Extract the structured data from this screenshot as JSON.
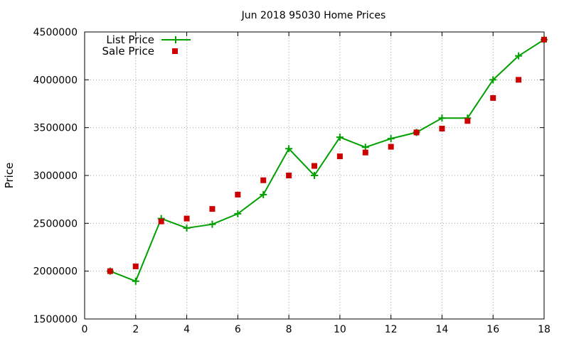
{
  "chart_data": {
    "type": "line",
    "title": "Jun 2018 95030 Home Prices",
    "xlabel": "",
    "ylabel": "Price",
    "xlim": [
      0,
      18
    ],
    "ylim": [
      1500000,
      4500000
    ],
    "xticks": [
      0,
      2,
      4,
      6,
      8,
      10,
      12,
      14,
      16,
      18
    ],
    "yticks": [
      1500000,
      2000000,
      2500000,
      3000000,
      3500000,
      4000000,
      4500000
    ],
    "xtick_labels": [
      "0",
      "2",
      "4",
      "6",
      "8",
      "10",
      "12",
      "14",
      "16",
      "18"
    ],
    "ytick_labels": [
      "1500000",
      "2000000",
      "2500000",
      "3000000",
      "3500000",
      "4000000",
      "4500000"
    ],
    "grid": true,
    "legend_position": "top-left",
    "series": [
      {
        "name": "List Price",
        "style": "line-with-plus-markers",
        "color": "#00a000",
        "x": [
          1,
          2,
          3,
          4,
          5,
          6,
          7,
          8,
          9,
          10,
          11,
          12,
          13,
          14,
          15,
          16,
          17,
          18
        ],
        "y": [
          2000000,
          1895000,
          2550000,
          2450000,
          2490000,
          2600000,
          2800000,
          3280000,
          3000000,
          3400000,
          3295000,
          3385000,
          3450000,
          3600000,
          3600000,
          4000000,
          4250000,
          4420000
        ]
      },
      {
        "name": "Sale Price",
        "style": "square-markers",
        "color": "#cc0000",
        "x": [
          1,
          2,
          3,
          4,
          5,
          6,
          7,
          8,
          9,
          10,
          11,
          12,
          13,
          14,
          15,
          16,
          17,
          18
        ],
        "y": [
          2000000,
          2050000,
          2520000,
          2550000,
          2650000,
          2800000,
          2950000,
          3000000,
          3100000,
          3200000,
          3240000,
          3300000,
          3450000,
          3490000,
          3570000,
          3810000,
          4000000,
          4420000
        ]
      }
    ]
  }
}
